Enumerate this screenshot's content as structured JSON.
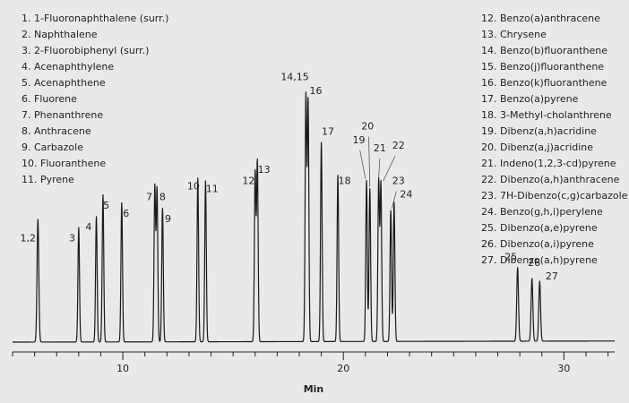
{
  "chart_data": {
    "type": "line",
    "xlabel": "Min",
    "ylabel": "",
    "title": "",
    "xlim": [
      5.0,
      32.3
    ],
    "ylim": [
      0,
      100
    ],
    "x_ticks": [
      10,
      20,
      30
    ],
    "grid": false,
    "legend_left": [
      "1. 1-Fluoronaphthalene (surr.)",
      "2. Naphthalene",
      "3. 2-Fluorobiphenyl (surr.)",
      "4. Acenaphthylene",
      "5. Acenaphthene",
      "6. Fluorene",
      "7. Phenanthrene",
      "8. Anthracene",
      "9. Carbazole",
      "10. Fluoranthene",
      "11. Pyrene"
    ],
    "legend_right": [
      "12. Benzo(a)anthracene",
      "13. Chrysene",
      "14. Benzo(b)fluoranthene",
      "15. Benzo(j)fluoranthene",
      "16. Benzo(k)fluoranthene",
      "17. Benzo(a)pyrene",
      "18. 3-Methyl-cholanthrene",
      "19. Dibenz(a,h)acridine",
      "20. Dibenz(a,j)acridine",
      "21. Indeno(1,2,3-cd)pyrene",
      "22. Dibenzo(a,h)anthracene",
      "23. 7H-Dibenzo(c,g)carbazole",
      "24. Benzo(g,h,i)perylene",
      "25. Dibenzo(a,e)pyrene",
      "26. Dibenzo(a,i)pyrene",
      "27. Dibenzo(a,h)pyrene"
    ],
    "peaks": [
      {
        "id": "p1",
        "rt": 6.15,
        "height": 45,
        "w": 0.04
      },
      {
        "id": "p3",
        "rt": 8.0,
        "height": 42,
        "w": 0.035
      },
      {
        "id": "p4",
        "rt": 8.8,
        "height": 46,
        "w": 0.035
      },
      {
        "id": "p5",
        "rt": 9.1,
        "height": 54,
        "w": 0.035
      },
      {
        "id": "p6",
        "rt": 9.95,
        "height": 51,
        "w": 0.035
      },
      {
        "id": "p7",
        "rt": 11.45,
        "height": 57,
        "w": 0.035
      },
      {
        "id": "p8",
        "rt": 11.55,
        "height": 56,
        "w": 0.035
      },
      {
        "id": "p9",
        "rt": 11.8,
        "height": 49,
        "w": 0.035
      },
      {
        "id": "p10",
        "rt": 13.4,
        "height": 60,
        "w": 0.035
      },
      {
        "id": "p11",
        "rt": 13.75,
        "height": 59,
        "w": 0.035
      },
      {
        "id": "p12",
        "rt": 16.0,
        "height": 62,
        "w": 0.035
      },
      {
        "id": "p13",
        "rt": 16.1,
        "height": 66,
        "w": 0.035
      },
      {
        "id": "p14",
        "rt": 18.3,
        "height": 90,
        "w": 0.035
      },
      {
        "id": "p15",
        "rt": 18.4,
        "height": 88,
        "w": 0.035
      },
      {
        "id": "p17",
        "rt": 19.0,
        "height": 73,
        "w": 0.035
      },
      {
        "id": "p18",
        "rt": 19.75,
        "height": 61,
        "w": 0.035
      },
      {
        "id": "p19",
        "rt": 21.05,
        "height": 59,
        "w": 0.035
      },
      {
        "id": "p20",
        "rt": 21.2,
        "height": 56,
        "w": 0.035
      },
      {
        "id": "p21",
        "rt": 21.6,
        "height": 59,
        "w": 0.035
      },
      {
        "id": "p22",
        "rt": 21.7,
        "height": 58,
        "w": 0.035
      },
      {
        "id": "p23",
        "rt": 22.15,
        "height": 48,
        "w": 0.035
      },
      {
        "id": "p24",
        "rt": 22.3,
        "height": 51,
        "w": 0.035
      },
      {
        "id": "p25",
        "rt": 27.9,
        "height": 27,
        "w": 0.04
      },
      {
        "id": "p26",
        "rt": 28.55,
        "height": 23,
        "w": 0.04
      },
      {
        "id": "p27",
        "rt": 28.9,
        "height": 22,
        "w": 0.04
      }
    ],
    "peak_labels": [
      {
        "text": "1,2",
        "x": 5.7,
        "y": 37
      },
      {
        "text": "3",
        "x": 7.7,
        "y": 37
      },
      {
        "text": "4",
        "x": 8.45,
        "y": 41
      },
      {
        "text": "5",
        "x": 9.25,
        "y": 49
      },
      {
        "text": "6",
        "x": 10.15,
        "y": 46
      },
      {
        "text": "7",
        "x": 11.2,
        "y": 52
      },
      {
        "text": "8",
        "x": 11.8,
        "y": 52
      },
      {
        "text": "9",
        "x": 12.05,
        "y": 44
      },
      {
        "text": "10",
        "x": 13.2,
        "y": 56
      },
      {
        "text": "11",
        "x": 14.05,
        "y": 55
      },
      {
        "text": "12",
        "x": 15.7,
        "y": 58
      },
      {
        "text": "13",
        "x": 16.4,
        "y": 62
      },
      {
        "text": "14,15",
        "x": 17.8,
        "y": 96
      },
      {
        "text": "16",
        "x": 18.75,
        "y": 91
      },
      {
        "text": "17",
        "x": 19.3,
        "y": 76
      },
      {
        "text": "18",
        "x": 20.05,
        "y": 58
      },
      {
        "text": "19",
        "x": 20.7,
        "y": 73
      },
      {
        "text": "20",
        "x": 21.1,
        "y": 78
      },
      {
        "text": "21",
        "x": 21.65,
        "y": 70
      },
      {
        "text": "22",
        "x": 22.5,
        "y": 71
      },
      {
        "text": "23",
        "x": 22.5,
        "y": 58
      },
      {
        "text": "24",
        "x": 22.85,
        "y": 53
      },
      {
        "text": "25",
        "x": 27.6,
        "y": 30
      },
      {
        "text": "26",
        "x": 28.65,
        "y": 28
      },
      {
        "text": "27",
        "x": 29.45,
        "y": 23
      }
    ],
    "colors": {
      "trace": "#1a1a1a",
      "background": "#e9e9e9",
      "text": "#222222"
    }
  }
}
